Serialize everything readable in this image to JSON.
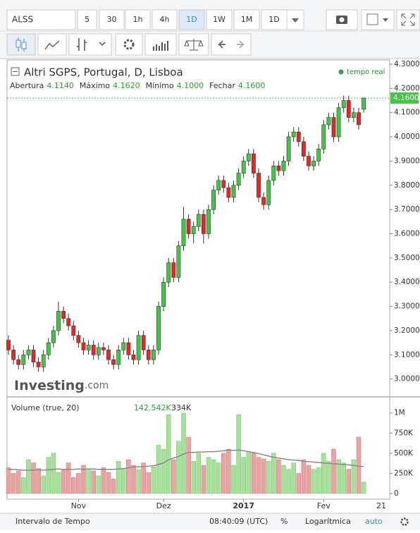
{
  "toolbar": {
    "symbol": "ALSS",
    "intervals": [
      "5",
      "30",
      "1h",
      "4h",
      "1D",
      "1W",
      "1M",
      "1D"
    ],
    "active_interval": 4
  },
  "status_bar": {
    "range": "Intervalo de Tempo",
    "time": "08:40:09 (UTC)",
    "percent": "%",
    "log": "Logarítmica",
    "auto": "auto"
  },
  "chart_data": {
    "type": "candlestick",
    "title": "Altri SGPS, Portugal, D, Lisboa",
    "realtime": "tempo real",
    "watermark": "Investing",
    "watermark_suffix": ".com",
    "ohlc_legend": [
      {
        "name": "Abertura",
        "value": "4.1140"
      },
      {
        "name": "Máximo",
        "value": "4.1620"
      },
      {
        "name": "Mínimo",
        "value": "4.1000"
      },
      {
        "name": "Fechar",
        "value": "4.1600"
      }
    ],
    "categories": [
      null,
      null,
      null,
      null,
      null,
      null,
      null,
      null,
      null,
      null,
      null,
      null,
      null,
      null,
      "Nov",
      null,
      null,
      null,
      null,
      null,
      null,
      null,
      null,
      null,
      null,
      null,
      null,
      null,
      null,
      null,
      null,
      "Dez",
      null,
      null,
      null,
      null,
      null,
      null,
      null,
      null,
      null,
      null,
      null,
      null,
      null,
      null,
      null,
      "2017",
      null,
      null,
      null,
      null,
      null,
      null,
      null,
      null,
      null,
      null,
      null,
      null,
      null,
      null,
      null,
      "Fev",
      null,
      null,
      null,
      null,
      null,
      null,
      null,
      null
    ],
    "x_end_label": "21",
    "open": [
      3.16,
      3.12,
      3.08,
      3.06,
      3.1,
      3.12,
      3.07,
      3.05,
      3.1,
      3.15,
      3.2,
      3.28,
      3.25,
      3.22,
      3.18,
      3.15,
      3.12,
      3.14,
      3.1,
      3.13,
      3.12,
      3.08,
      3.06,
      3.12,
      3.15,
      3.1,
      3.08,
      3.18,
      3.12,
      3.08,
      3.12,
      3.3,
      3.4,
      3.48,
      3.42,
      3.55,
      3.66,
      3.6,
      3.63,
      3.68,
      3.6,
      3.7,
      3.78,
      3.82,
      3.79,
      3.75,
      3.8,
      3.85,
      3.9,
      3.93,
      3.85,
      3.75,
      3.72,
      3.82,
      3.88,
      3.86,
      3.9,
      4.0,
      4.02,
      3.98,
      3.92,
      3.88,
      3.9,
      3.95,
      4.05,
      4.08,
      4.0,
      4.12,
      4.15,
      4.08,
      4.1,
      4.114
    ],
    "high": [
      3.18,
      3.14,
      3.1,
      3.12,
      3.14,
      3.14,
      3.09,
      3.12,
      3.17,
      3.22,
      3.32,
      3.3,
      3.27,
      3.24,
      3.2,
      3.17,
      3.16,
      3.16,
      3.15,
      3.15,
      3.14,
      3.1,
      3.14,
      3.17,
      3.17,
      3.12,
      3.2,
      3.2,
      3.14,
      3.14,
      3.32,
      3.42,
      3.5,
      3.5,
      3.57,
      3.71,
      3.68,
      3.65,
      3.7,
      3.7,
      3.72,
      3.8,
      3.84,
      3.84,
      3.81,
      3.82,
      3.87,
      3.92,
      3.95,
      3.95,
      3.87,
      3.77,
      3.84,
      3.9,
      3.9,
      3.92,
      4.02,
      4.04,
      4.04,
      4.0,
      3.94,
      3.92,
      3.97,
      4.07,
      4.1,
      4.1,
      4.14,
      4.17,
      4.17,
      4.12,
      4.12,
      4.162
    ],
    "low": [
      3.1,
      3.06,
      3.04,
      3.04,
      3.08,
      3.05,
      3.03,
      3.03,
      3.08,
      3.13,
      3.18,
      3.23,
      3.2,
      3.16,
      3.13,
      3.1,
      3.1,
      3.08,
      3.08,
      3.1,
      3.06,
      3.04,
      3.04,
      3.1,
      3.08,
      3.06,
      3.06,
      3.1,
      3.06,
      3.06,
      3.1,
      3.28,
      3.38,
      3.4,
      3.4,
      3.53,
      3.58,
      3.56,
      3.61,
      3.56,
      3.58,
      3.68,
      3.76,
      3.77,
      3.73,
      3.73,
      3.78,
      3.83,
      3.88,
      3.83,
      3.73,
      3.7,
      3.7,
      3.8,
      3.84,
      3.84,
      3.88,
      3.98,
      3.96,
      3.9,
      3.86,
      3.86,
      3.88,
      3.93,
      4.03,
      3.98,
      3.98,
      4.1,
      4.06,
      4.06,
      4.03,
      4.1
    ],
    "close": [
      3.12,
      3.08,
      3.06,
      3.1,
      3.12,
      3.07,
      3.05,
      3.1,
      3.15,
      3.2,
      3.28,
      3.25,
      3.22,
      3.18,
      3.15,
      3.12,
      3.14,
      3.1,
      3.13,
      3.12,
      3.08,
      3.06,
      3.12,
      3.15,
      3.1,
      3.08,
      3.18,
      3.12,
      3.08,
      3.12,
      3.3,
      3.4,
      3.48,
      3.42,
      3.55,
      3.66,
      3.6,
      3.63,
      3.68,
      3.6,
      3.7,
      3.78,
      3.82,
      3.79,
      3.75,
      3.8,
      3.85,
      3.9,
      3.93,
      3.85,
      3.75,
      3.72,
      3.82,
      3.88,
      3.86,
      3.9,
      4.0,
      4.02,
      3.98,
      3.92,
      3.88,
      3.9,
      3.95,
      4.05,
      4.08,
      4.0,
      4.12,
      4.15,
      4.08,
      4.1,
      4.05,
      4.16
    ],
    "up_color": "#45c545",
    "down_color": "#e02a2a",
    "ylim": [
      2.92,
      4.32
    ],
    "yticks": [
      {
        "value": 4.3,
        "label": "4.3000"
      },
      {
        "value": 4.2,
        "label": "4.2000"
      },
      {
        "value": 4.1,
        "label": "4.1000"
      },
      {
        "value": 4.0,
        "label": "4.0000"
      },
      {
        "value": 3.9,
        "label": "3.9000"
      },
      {
        "value": 3.8,
        "label": "3.8000"
      },
      {
        "value": 3.7,
        "label": "3.7000"
      },
      {
        "value": 3.6,
        "label": "3.6000"
      },
      {
        "value": 3.5,
        "label": "3.5000"
      },
      {
        "value": 3.4,
        "label": "3.4000"
      },
      {
        "value": 3.3,
        "label": "3.3000"
      },
      {
        "value": 3.2,
        "label": "3.2000"
      },
      {
        "value": 3.1,
        "label": "3.1000"
      },
      {
        "value": 3.0,
        "label": "3.0000"
      }
    ],
    "last_price": {
      "value": 4.16,
      "label": "4.1600"
    },
    "volume": {
      "title": "Volume (true, 20)",
      "last_label": "142.542K",
      "ma_label": "334K",
      "up_color": "#a6e19c",
      "down_color": "#e8a3a3",
      "ma_color": "#8a8a8a",
      "values": [
        320000,
        250000,
        280000,
        200000,
        420000,
        380000,
        310000,
        220000,
        450000,
        500000,
        260000,
        300000,
        380000,
        200000,
        250000,
        350000,
        300000,
        280000,
        220000,
        320000,
        260000,
        180000,
        400000,
        300000,
        420000,
        350000,
        300000,
        380000,
        260000,
        330000,
        600000,
        550000,
        980000,
        420000,
        650000,
        1000000,
        700000,
        400000,
        500000,
        350000,
        450000,
        420000,
        380000,
        500000,
        550000,
        350000,
        980000,
        450000,
        520000,
        500000,
        450000,
        430000,
        400000,
        500000,
        420000,
        350000,
        300000,
        380000,
        250000,
        420000,
        350000,
        300000,
        320000,
        500000,
        400000,
        550000,
        420000,
        380000,
        300000,
        420000,
        700000,
        142542
      ],
      "ma": [
        300000,
        300000,
        295000,
        290000,
        290000,
        290000,
        295000,
        290000,
        295000,
        300000,
        305000,
        300000,
        300000,
        300000,
        305000,
        300000,
        305000,
        305000,
        300000,
        300000,
        300000,
        300000,
        305000,
        310000,
        320000,
        330000,
        330000,
        335000,
        340000,
        345000,
        360000,
        380000,
        420000,
        440000,
        460000,
        490000,
        510000,
        510000,
        515000,
        515000,
        520000,
        520000,
        525000,
        530000,
        540000,
        535000,
        540000,
        530000,
        520000,
        510000,
        495000,
        480000,
        465000,
        450000,
        440000,
        430000,
        420000,
        415000,
        410000,
        400000,
        395000,
        390000,
        385000,
        380000,
        375000,
        370000,
        365000,
        360000,
        355000,
        350000,
        340000,
        334000
      ],
      "ylim": [
        0,
        1120000
      ],
      "yticks": [
        {
          "value": 1000000,
          "label": "1M"
        },
        {
          "value": 750000,
          "label": "750K"
        },
        {
          "value": 500000,
          "label": "500K"
        },
        {
          "value": 250000,
          "label": "250K"
        },
        0
      ]
    }
  }
}
